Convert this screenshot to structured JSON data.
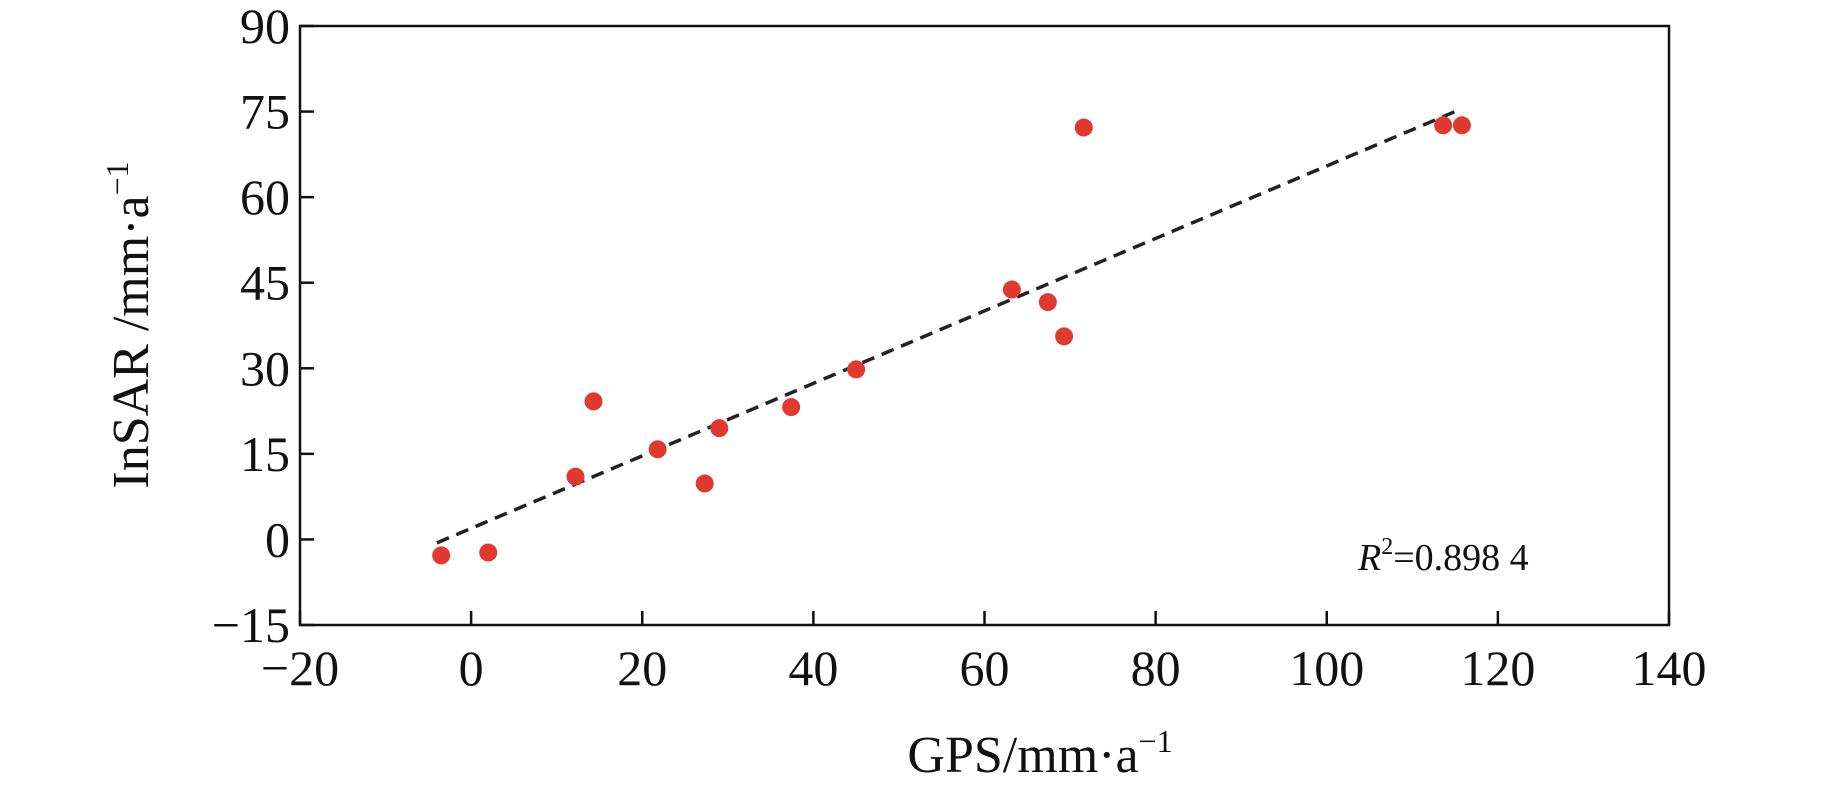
{
  "chart_data": {
    "type": "scatter",
    "xlabel": "GPS/mm·a",
    "xlabel_sup": "−1",
    "ylabel": "InSAR /mm·a",
    "ylabel_sup": "−1",
    "xlim": [
      -20,
      140
    ],
    "ylim": [
      -15,
      90
    ],
    "xticks": [
      -20,
      0,
      20,
      40,
      60,
      80,
      100,
      120,
      140
    ],
    "yticks": [
      -15,
      0,
      15,
      30,
      45,
      60,
      75,
      90
    ],
    "xtick_labels": [
      "−20",
      "0",
      "20",
      "40",
      "60",
      "80",
      "100",
      "120",
      "140"
    ],
    "ytick_labels": [
      "−15",
      "0",
      "15",
      "30",
      "45",
      "60",
      "75",
      "90"
    ],
    "grid": false,
    "marker_color": "#e03a2f",
    "trend_color": "#222222",
    "points": [
      {
        "x": -3.5,
        "y": -2.8
      },
      {
        "x": 2.0,
        "y": -2.3
      },
      {
        "x": 12.2,
        "y": 11.0
      },
      {
        "x": 14.3,
        "y": 24.2
      },
      {
        "x": 21.8,
        "y": 15.8
      },
      {
        "x": 27.3,
        "y": 9.8
      },
      {
        "x": 29.0,
        "y": 19.5
      },
      {
        "x": 37.4,
        "y": 23.2
      },
      {
        "x": 45.0,
        "y": 29.8
      },
      {
        "x": 63.2,
        "y": 43.8
      },
      {
        "x": 67.4,
        "y": 41.6
      },
      {
        "x": 69.3,
        "y": 35.6
      },
      {
        "x": 71.6,
        "y": 72.2
      },
      {
        "x": 113.6,
        "y": 72.6
      },
      {
        "x": 115.8,
        "y": 72.6
      }
    ],
    "trendline": {
      "x": [
        -4,
        115
      ],
      "y": [
        -0.6,
        75
      ]
    },
    "annotation": {
      "label": "R",
      "sup": "2",
      "value": "=0.898 4"
    }
  }
}
